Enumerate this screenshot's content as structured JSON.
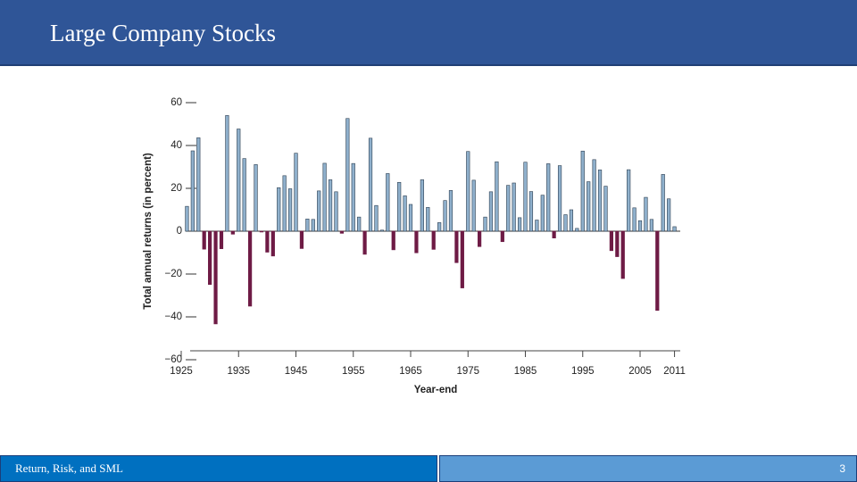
{
  "slide": {
    "title": "Large Company Stocks",
    "footer": "Return, Risk, and SML",
    "page_number": "3"
  },
  "chart_data": {
    "type": "bar",
    "x_label": "Year-end",
    "y_label": "Total annual returns (in percent)",
    "x": [
      1926,
      1927,
      1928,
      1929,
      1930,
      1931,
      1932,
      1933,
      1934,
      1935,
      1936,
      1937,
      1938,
      1939,
      1940,
      1941,
      1942,
      1943,
      1944,
      1945,
      1946,
      1947,
      1948,
      1949,
      1950,
      1951,
      1952,
      1953,
      1954,
      1955,
      1956,
      1957,
      1958,
      1959,
      1960,
      1961,
      1962,
      1963,
      1964,
      1965,
      1966,
      1967,
      1968,
      1969,
      1970,
      1971,
      1972,
      1973,
      1974,
      1975,
      1976,
      1977,
      1978,
      1979,
      1980,
      1981,
      1982,
      1983,
      1984,
      1985,
      1986,
      1987,
      1988,
      1989,
      1990,
      1991,
      1992,
      1993,
      1994,
      1995,
      1996,
      1997,
      1998,
      1999,
      2000,
      2001,
      2002,
      2003,
      2004,
      2005,
      2006,
      2007,
      2008,
      2009,
      2010,
      2011
    ],
    "values": [
      11.6,
      37.5,
      43.6,
      -8.4,
      -24.9,
      -43.3,
      -8.2,
      54.0,
      -1.4,
      47.7,
      33.9,
      -35.0,
      31.1,
      -0.4,
      -9.8,
      -11.6,
      20.3,
      25.9,
      19.8,
      36.4,
      -8.1,
      5.7,
      5.5,
      18.8,
      31.7,
      24.0,
      18.4,
      -1.0,
      52.6,
      31.6,
      6.6,
      -10.8,
      43.4,
      12.0,
      0.5,
      26.9,
      -8.7,
      22.8,
      16.5,
      12.5,
      -10.1,
      24.0,
      11.1,
      -8.5,
      4.0,
      14.3,
      19.0,
      -14.7,
      -26.5,
      37.2,
      23.8,
      -7.2,
      6.6,
      18.4,
      32.4,
      -4.9,
      21.4,
      22.5,
      6.3,
      32.2,
      18.5,
      5.2,
      16.8,
      31.5,
      -3.2,
      30.6,
      7.7,
      10.0,
      1.3,
      37.4,
      23.1,
      33.4,
      28.6,
      21.0,
      -9.1,
      -11.9,
      -22.1,
      28.7,
      10.9,
      4.9,
      15.8,
      5.5,
      -37.0,
      26.5,
      15.1,
      2.1
    ],
    "color": "#8fb0cc",
    "negative_color": "#6e1b45",
    "xlim": [
      1925,
      2012
    ],
    "xticks": [
      1925,
      1935,
      1945,
      1955,
      1965,
      1975,
      1985,
      1995,
      2005,
      2011
    ],
    "ylim": [
      -60,
      60
    ],
    "yticks": [
      {
        "value": -60,
        "label": "−60"
      },
      {
        "value": -40,
        "label": "−40"
      },
      {
        "value": -20,
        "label": "−20"
      },
      0,
      20,
      40,
      60
    ]
  }
}
